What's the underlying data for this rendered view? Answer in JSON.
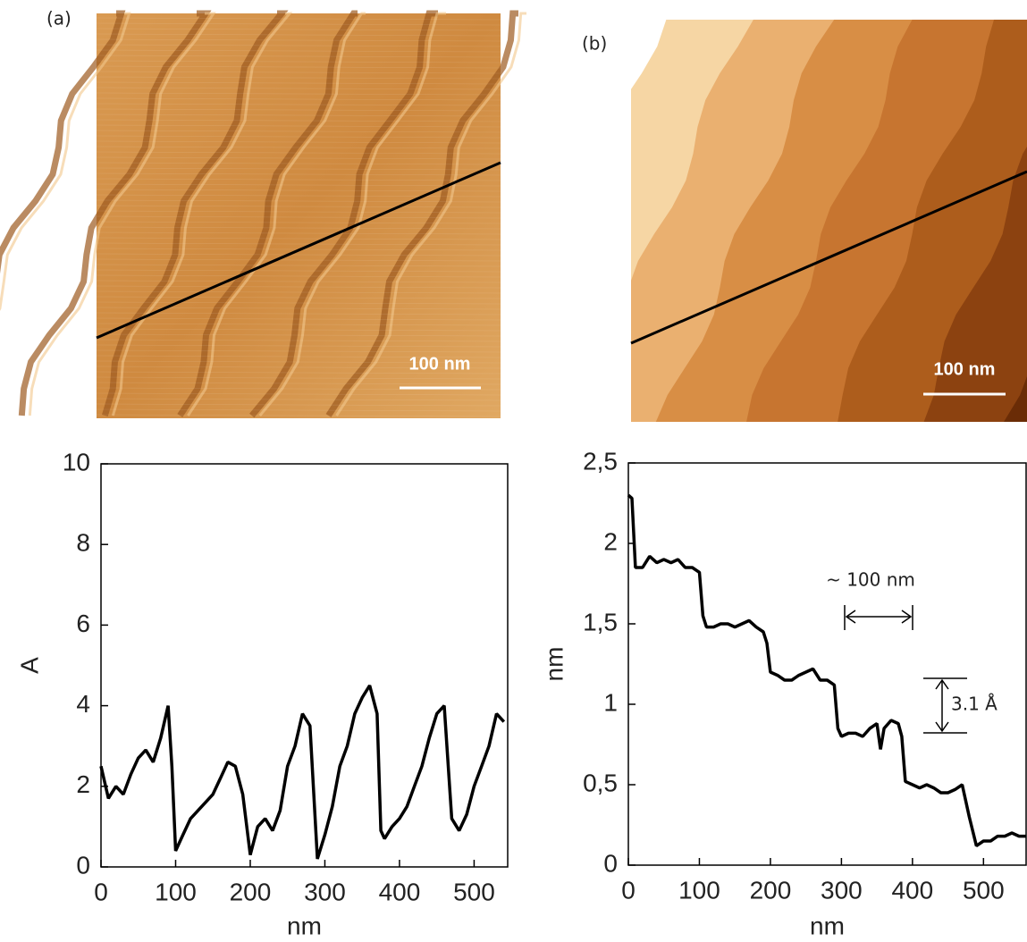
{
  "images": [
    {
      "label": "(a)",
      "scale_bar": "100 nm"
    },
    {
      "label": "(b)",
      "scale_bar": "100 nm"
    }
  ],
  "chart_data": [
    {
      "type": "line",
      "xlabel": "nm",
      "ylabel": "A",
      "xlim": [
        0,
        545
      ],
      "ylim": [
        0,
        10
      ],
      "xticks": [
        0,
        100,
        200,
        300,
        400,
        500
      ],
      "yticks": [
        0,
        2,
        4,
        6,
        8,
        10
      ],
      "series": [
        {
          "color": "#000000",
          "x": [
            0,
            10,
            20,
            30,
            40,
            50,
            60,
            70,
            80,
            90,
            95,
            100,
            110,
            120,
            130,
            140,
            150,
            160,
            170,
            180,
            190,
            200,
            210,
            220,
            230,
            240,
            250,
            260,
            270,
            280,
            290,
            300,
            310,
            320,
            330,
            340,
            350,
            360,
            370,
            375,
            380,
            390,
            400,
            410,
            420,
            430,
            440,
            450,
            460,
            470,
            480,
            490,
            500,
            510,
            520,
            530,
            540
          ],
          "values": [
            2.5,
            1.7,
            2.0,
            1.8,
            2.3,
            2.7,
            2.9,
            2.6,
            3.2,
            4.0,
            2.5,
            0.4,
            0.8,
            1.2,
            1.4,
            1.6,
            1.8,
            2.2,
            2.6,
            2.5,
            1.8,
            0.3,
            1.0,
            1.2,
            0.9,
            1.4,
            2.5,
            3.0,
            3.8,
            3.5,
            0.2,
            0.8,
            1.5,
            2.5,
            3.0,
            3.8,
            4.2,
            4.5,
            3.8,
            0.9,
            0.7,
            1.0,
            1.2,
            1.5,
            2.0,
            2.5,
            3.2,
            3.8,
            4.0,
            1.2,
            0.9,
            1.3,
            2.0,
            2.5,
            3.0,
            3.8,
            3.6
          ]
        }
      ]
    },
    {
      "type": "line",
      "xlabel": "nm",
      "ylabel": "nm",
      "xlim": [
        0,
        560
      ],
      "ylim": [
        0,
        2.5
      ],
      "xticks": [
        0,
        100,
        200,
        300,
        400,
        500
      ],
      "yticks": [
        0,
        {
          "value": 0.5,
          "label": "0,5"
        },
        1,
        {
          "value": 1.5,
          "label": "1,5"
        },
        2,
        {
          "value": 2.5,
          "label": "2,5"
        }
      ],
      "annotations": [
        "~ 100 nm",
        "3.1 Å"
      ],
      "series": [
        {
          "color": "#000000",
          "x": [
            0,
            5,
            10,
            20,
            30,
            40,
            50,
            60,
            70,
            80,
            90,
            100,
            105,
            110,
            120,
            130,
            140,
            150,
            160,
            170,
            180,
            190,
            195,
            200,
            210,
            220,
            230,
            240,
            250,
            260,
            270,
            280,
            290,
            295,
            300,
            310,
            320,
            330,
            340,
            350,
            355,
            360,
            370,
            380,
            385,
            390,
            400,
            410,
            420,
            430,
            440,
            450,
            460,
            470,
            480,
            490,
            500,
            510,
            520,
            530,
            540,
            550,
            560
          ],
          "values": [
            2.3,
            2.28,
            1.85,
            1.85,
            1.92,
            1.88,
            1.9,
            1.88,
            1.9,
            1.85,
            1.85,
            1.82,
            1.55,
            1.48,
            1.48,
            1.5,
            1.5,
            1.48,
            1.5,
            1.52,
            1.48,
            1.45,
            1.38,
            1.2,
            1.18,
            1.15,
            1.15,
            1.18,
            1.2,
            1.22,
            1.15,
            1.15,
            1.12,
            0.85,
            0.8,
            0.82,
            0.82,
            0.8,
            0.85,
            0.88,
            0.72,
            0.85,
            0.9,
            0.88,
            0.8,
            0.52,
            0.5,
            0.48,
            0.5,
            0.48,
            0.45,
            0.45,
            0.47,
            0.5,
            0.3,
            0.12,
            0.15,
            0.15,
            0.18,
            0.18,
            0.2,
            0.18,
            0.18
          ]
        }
      ]
    }
  ]
}
